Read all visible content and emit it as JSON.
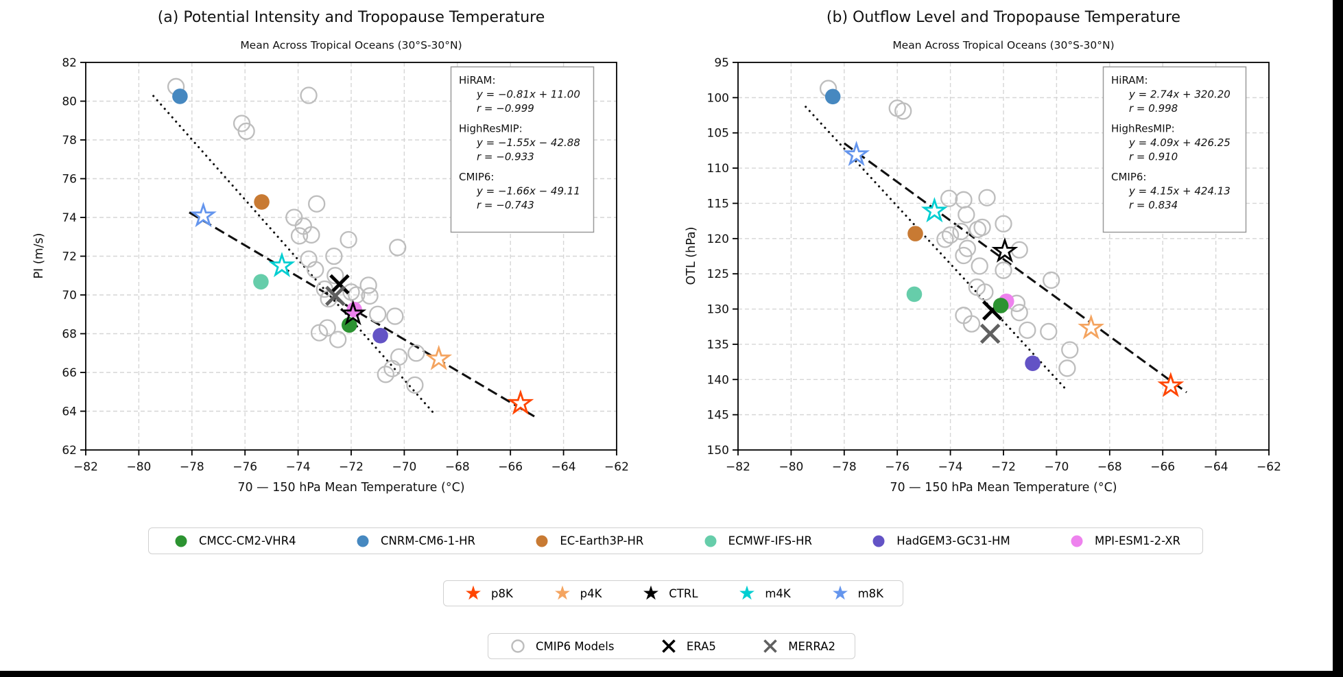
{
  "figure": {
    "background": "#000000",
    "canvas": "#ffffff"
  },
  "marker_colors": {
    "CMCC-CM2-VHR4": "#2c9331",
    "CNRM-CM6-1-HR": "#4688c0",
    "EC-Earth3P-HR": "#c87a33",
    "ECMWF-IFS-HR": "#66cdaa",
    "HadGEM3-GC31-HM": "#6353c5",
    "MPI-ESM1-2-XR": "#ee82ee",
    "p8K": "#ff4500",
    "p4K": "#f4a460",
    "CTRL": "#000000",
    "m4K": "#00ced1",
    "m8K": "#6495ed",
    "ERA5": "#000000",
    "MERRA2": "#606060",
    "CMIP6": "#bdbdbd",
    "grid": "#d6d6d6",
    "fit_line": "#111111"
  },
  "chart_data": [
    {
      "panel": "a",
      "type": "scatter",
      "title": "(a) Potential Intensity and Tropopause Temperature",
      "subtitle": "Mean Across Tropical Oceans (30°S-30°N)",
      "xlabel": "70 — 150 hPa Mean Temperature (°C)",
      "ylabel": "PI (m/s)",
      "xlim": [
        -82,
        -62
      ],
      "ylim": [
        82,
        62
      ],
      "grid": true,
      "xticks": [
        -82,
        -80,
        -78,
        -76,
        -74,
        -72,
        -70,
        -68,
        -66,
        -64,
        -62
      ],
      "xtick_labels": [
        "−82",
        "−80",
        "−78",
        "−76",
        "−74",
        "−72",
        "−70",
        "−68",
        "−66",
        "−64",
        "−62"
      ],
      "yticks": [
        82,
        80,
        78,
        76,
        74,
        72,
        70,
        68,
        66,
        64,
        62
      ],
      "ytick_labels": [
        "82",
        "80",
        "78",
        "76",
        "74",
        "72",
        "70",
        "68",
        "66",
        "64",
        "62"
      ],
      "stats_box": {
        "entries": [
          {
            "name": "HiRAM:",
            "eq": "y = −0.81x + 11.00",
            "r": "r = −0.999"
          },
          {
            "name": "HighResMIP:",
            "eq": "y = −1.55x − 42.88",
            "r": "r = −0.933"
          },
          {
            "name": "CMIP6:",
            "eq": "y = −1.66x − 49.11",
            "r": "r = −0.743"
          }
        ]
      },
      "fit_lines": [
        {
          "name": "HiRAM",
          "style": "dashed",
          "slope": -0.81,
          "intercept": 11.0,
          "x_start": -78.1,
          "x_end": -65.1
        },
        {
          "name": "HighResMIP",
          "style": "dotted",
          "slope": -1.55,
          "intercept": -42.88,
          "x_start": -79.45,
          "x_end": -68.88
        }
      ],
      "model_points": [
        {
          "name": "CNRM-CM6-1-HR",
          "x": -78.45,
          "y": 80.25
        },
        {
          "name": "EC-Earth3P-HR",
          "x": -75.37,
          "y": 74.8
        },
        {
          "name": "ECMWF-IFS-HR",
          "x": -75.4,
          "y": 70.68
        },
        {
          "name": "MPI-ESM1-2-XR",
          "x": -71.88,
          "y": 69.24
        },
        {
          "name": "CMCC-CM2-VHR4",
          "x": -72.07,
          "y": 68.45
        },
        {
          "name": "HadGEM3-GC31-HM",
          "x": -70.9,
          "y": 67.9
        }
      ],
      "experiment_points": [
        {
          "name": "m8K",
          "x": -77.57,
          "y": 74.08,
          "fill": "white"
        },
        {
          "name": "m4K",
          "x": -74.61,
          "y": 71.5,
          "fill": "white"
        },
        {
          "name": "CTRL",
          "x": -71.93,
          "y": 69.02,
          "fill": "none"
        },
        {
          "name": "p4K",
          "x": -68.7,
          "y": 66.7,
          "fill": "white"
        },
        {
          "name": "p8K",
          "x": -65.62,
          "y": 64.4,
          "fill": "white"
        }
      ],
      "reanalysis_points": [
        {
          "name": "ERA5",
          "x": -72.44,
          "y": 70.55
        },
        {
          "name": "MERRA2",
          "x": -72.6,
          "y": 69.95
        }
      ],
      "cmip6_points": [
        [
          -78.6,
          80.75
        ],
        [
          -76.12,
          78.85
        ],
        [
          -75.95,
          78.45
        ],
        [
          -73.6,
          80.3
        ],
        [
          -73.3,
          74.7
        ],
        [
          -74.15,
          74.0
        ],
        [
          -73.8,
          73.55
        ],
        [
          -73.95,
          73.05
        ],
        [
          -73.5,
          73.1
        ],
        [
          -73.6,
          71.85
        ],
        [
          -73.35,
          71.3
        ],
        [
          -72.1,
          72.85
        ],
        [
          -72.65,
          72.0
        ],
        [
          -70.25,
          72.45
        ],
        [
          -72.6,
          71.0
        ],
        [
          -73.0,
          70.3
        ],
        [
          -72.85,
          69.8
        ],
        [
          -72.0,
          70.15
        ],
        [
          -71.8,
          70.0
        ],
        [
          -71.35,
          70.5
        ],
        [
          -71.3,
          69.95
        ],
        [
          -71.0,
          69.0
        ],
        [
          -70.35,
          68.9
        ],
        [
          -72.9,
          68.3
        ],
        [
          -73.2,
          68.05
        ],
        [
          -72.5,
          67.7
        ],
        [
          -70.2,
          66.8
        ],
        [
          -70.45,
          66.2
        ],
        [
          -70.7,
          65.9
        ],
        [
          -69.55,
          67.0
        ],
        [
          -69.6,
          65.35
        ]
      ]
    },
    {
      "panel": "b",
      "type": "scatter",
      "title": "(b) Outflow Level and Tropopause Temperature",
      "subtitle": "Mean Across Tropical Oceans (30°S-30°N)",
      "xlabel": "70 — 150 hPa Mean Temperature (°C)",
      "ylabel": "OTL (hPa)",
      "xlim": [
        -82,
        -62
      ],
      "ylim": [
        95,
        150
      ],
      "grid": true,
      "xticks": [
        -82,
        -80,
        -78,
        -76,
        -74,
        -72,
        -70,
        -68,
        -66,
        -64,
        -62
      ],
      "xtick_labels": [
        "−82",
        "−80",
        "−78",
        "−76",
        "−74",
        "−72",
        "−70",
        "−68",
        "−66",
        "−64",
        "−62"
      ],
      "yticks": [
        95,
        100,
        105,
        110,
        115,
        120,
        125,
        130,
        135,
        140,
        145,
        150
      ],
      "ytick_labels": [
        "95",
        "100",
        "105",
        "110",
        "115",
        "120",
        "125",
        "130",
        "135",
        "140",
        "145",
        "150"
      ],
      "stats_box": {
        "entries": [
          {
            "name": "HiRAM:",
            "eq": "y = 2.74x + 320.20",
            "r": "r = 0.998"
          },
          {
            "name": "HighResMIP:",
            "eq": "y = 4.09x + 426.25",
            "r": "r = 0.910"
          },
          {
            "name": "CMIP6:",
            "eq": "y = 4.15x + 424.13",
            "r": "r = 0.834"
          }
        ]
      },
      "fit_lines": [
        {
          "name": "HiRAM",
          "style": "dashed",
          "slope": 2.74,
          "intercept": 320.2,
          "x_start": -78.0,
          "x_end": -65.1
        },
        {
          "name": "HighResMIP",
          "style": "dotted",
          "slope": 4.09,
          "intercept": 426.25,
          "x_start": -79.45,
          "x_end": -69.6
        }
      ],
      "model_points": [
        {
          "name": "CNRM-CM6-1-HR",
          "x": -78.43,
          "y": 99.85
        },
        {
          "name": "EC-Earth3P-HR",
          "x": -75.32,
          "y": 119.3
        },
        {
          "name": "ECMWF-IFS-HR",
          "x": -75.36,
          "y": 127.9
        },
        {
          "name": "MPI-ESM1-2-XR",
          "x": -71.89,
          "y": 128.9
        },
        {
          "name": "CMCC-CM2-VHR4",
          "x": -72.1,
          "y": 129.5
        },
        {
          "name": "HadGEM3-GC31-HM",
          "x": -70.9,
          "y": 137.7
        }
      ],
      "experiment_points": [
        {
          "name": "m8K",
          "x": -77.54,
          "y": 108.1,
          "fill": "white"
        },
        {
          "name": "m4K",
          "x": -74.6,
          "y": 116.1,
          "fill": "white"
        },
        {
          "name": "CTRL",
          "x": -71.95,
          "y": 121.8,
          "fill": "white"
        },
        {
          "name": "p4K",
          "x": -68.7,
          "y": 132.7,
          "fill": "white"
        },
        {
          "name": "p8K",
          "x": -65.7,
          "y": 140.9,
          "fill": "white"
        }
      ],
      "reanalysis_points": [
        {
          "name": "ERA5",
          "x": -72.42,
          "y": 130.2
        },
        {
          "name": "MERRA2",
          "x": -72.5,
          "y": 133.5
        }
      ],
      "cmip6_points": [
        [
          -78.6,
          98.7
        ],
        [
          -76.0,
          101.5
        ],
        [
          -75.78,
          101.9
        ],
        [
          -74.05,
          114.3
        ],
        [
          -73.5,
          114.5
        ],
        [
          -72.62,
          114.2
        ],
        [
          -73.4,
          116.6
        ],
        [
          -72.0,
          117.9
        ],
        [
          -72.97,
          118.7
        ],
        [
          -74.0,
          119.5
        ],
        [
          -74.2,
          120.1
        ],
        [
          -73.6,
          119.0
        ],
        [
          -72.8,
          118.4
        ],
        [
          -73.36,
          121.4
        ],
        [
          -71.4,
          121.6
        ],
        [
          -73.5,
          122.4
        ],
        [
          -72.9,
          123.9
        ],
        [
          -72.0,
          124.5
        ],
        [
          -70.2,
          125.9
        ],
        [
          -73.0,
          126.9
        ],
        [
          -72.7,
          127.6
        ],
        [
          -71.5,
          129.2
        ],
        [
          -71.4,
          130.5
        ],
        [
          -73.5,
          130.9
        ],
        [
          -73.2,
          132.1
        ],
        [
          -71.1,
          133.0
        ],
        [
          -70.3,
          133.2
        ],
        [
          -69.5,
          135.8
        ],
        [
          -69.6,
          138.4
        ]
      ]
    }
  ],
  "legends": [
    {
      "name": "models",
      "items": [
        {
          "label": "CMCC-CM2-VHR4",
          "marker": "circle_filled",
          "color": "#2c9331"
        },
        {
          "label": "CNRM-CM6-1-HR",
          "marker": "circle_filled",
          "color": "#4688c0"
        },
        {
          "label": "EC-Earth3P-HR",
          "marker": "circle_filled",
          "color": "#c87a33"
        },
        {
          "label": "ECMWF-IFS-HR",
          "marker": "circle_filled",
          "color": "#66cdaa"
        },
        {
          "label": "HadGEM3-GC31-HM",
          "marker": "circle_filled",
          "color": "#6353c5"
        },
        {
          "label": "MPI-ESM1-2-XR",
          "marker": "circle_filled",
          "color": "#ee82ee"
        }
      ]
    },
    {
      "name": "experiments",
      "items": [
        {
          "label": "p8K",
          "marker": "star_filled",
          "color": "#ff4500"
        },
        {
          "label": "p4K",
          "marker": "star_filled",
          "color": "#f4a460"
        },
        {
          "label": "CTRL",
          "marker": "star_filled",
          "color": "#000000"
        },
        {
          "label": "m4K",
          "marker": "star_filled",
          "color": "#00ced1"
        },
        {
          "label": "m8K",
          "marker": "star_filled",
          "color": "#6495ed"
        }
      ]
    },
    {
      "name": "reference",
      "items": [
        {
          "label": "CMIP6 Models",
          "marker": "circle_open",
          "color": "#bdbdbd"
        },
        {
          "label": "ERA5",
          "marker": "x",
          "color": "#000000"
        },
        {
          "label": "MERRA2",
          "marker": "x",
          "color": "#606060"
        }
      ]
    }
  ]
}
